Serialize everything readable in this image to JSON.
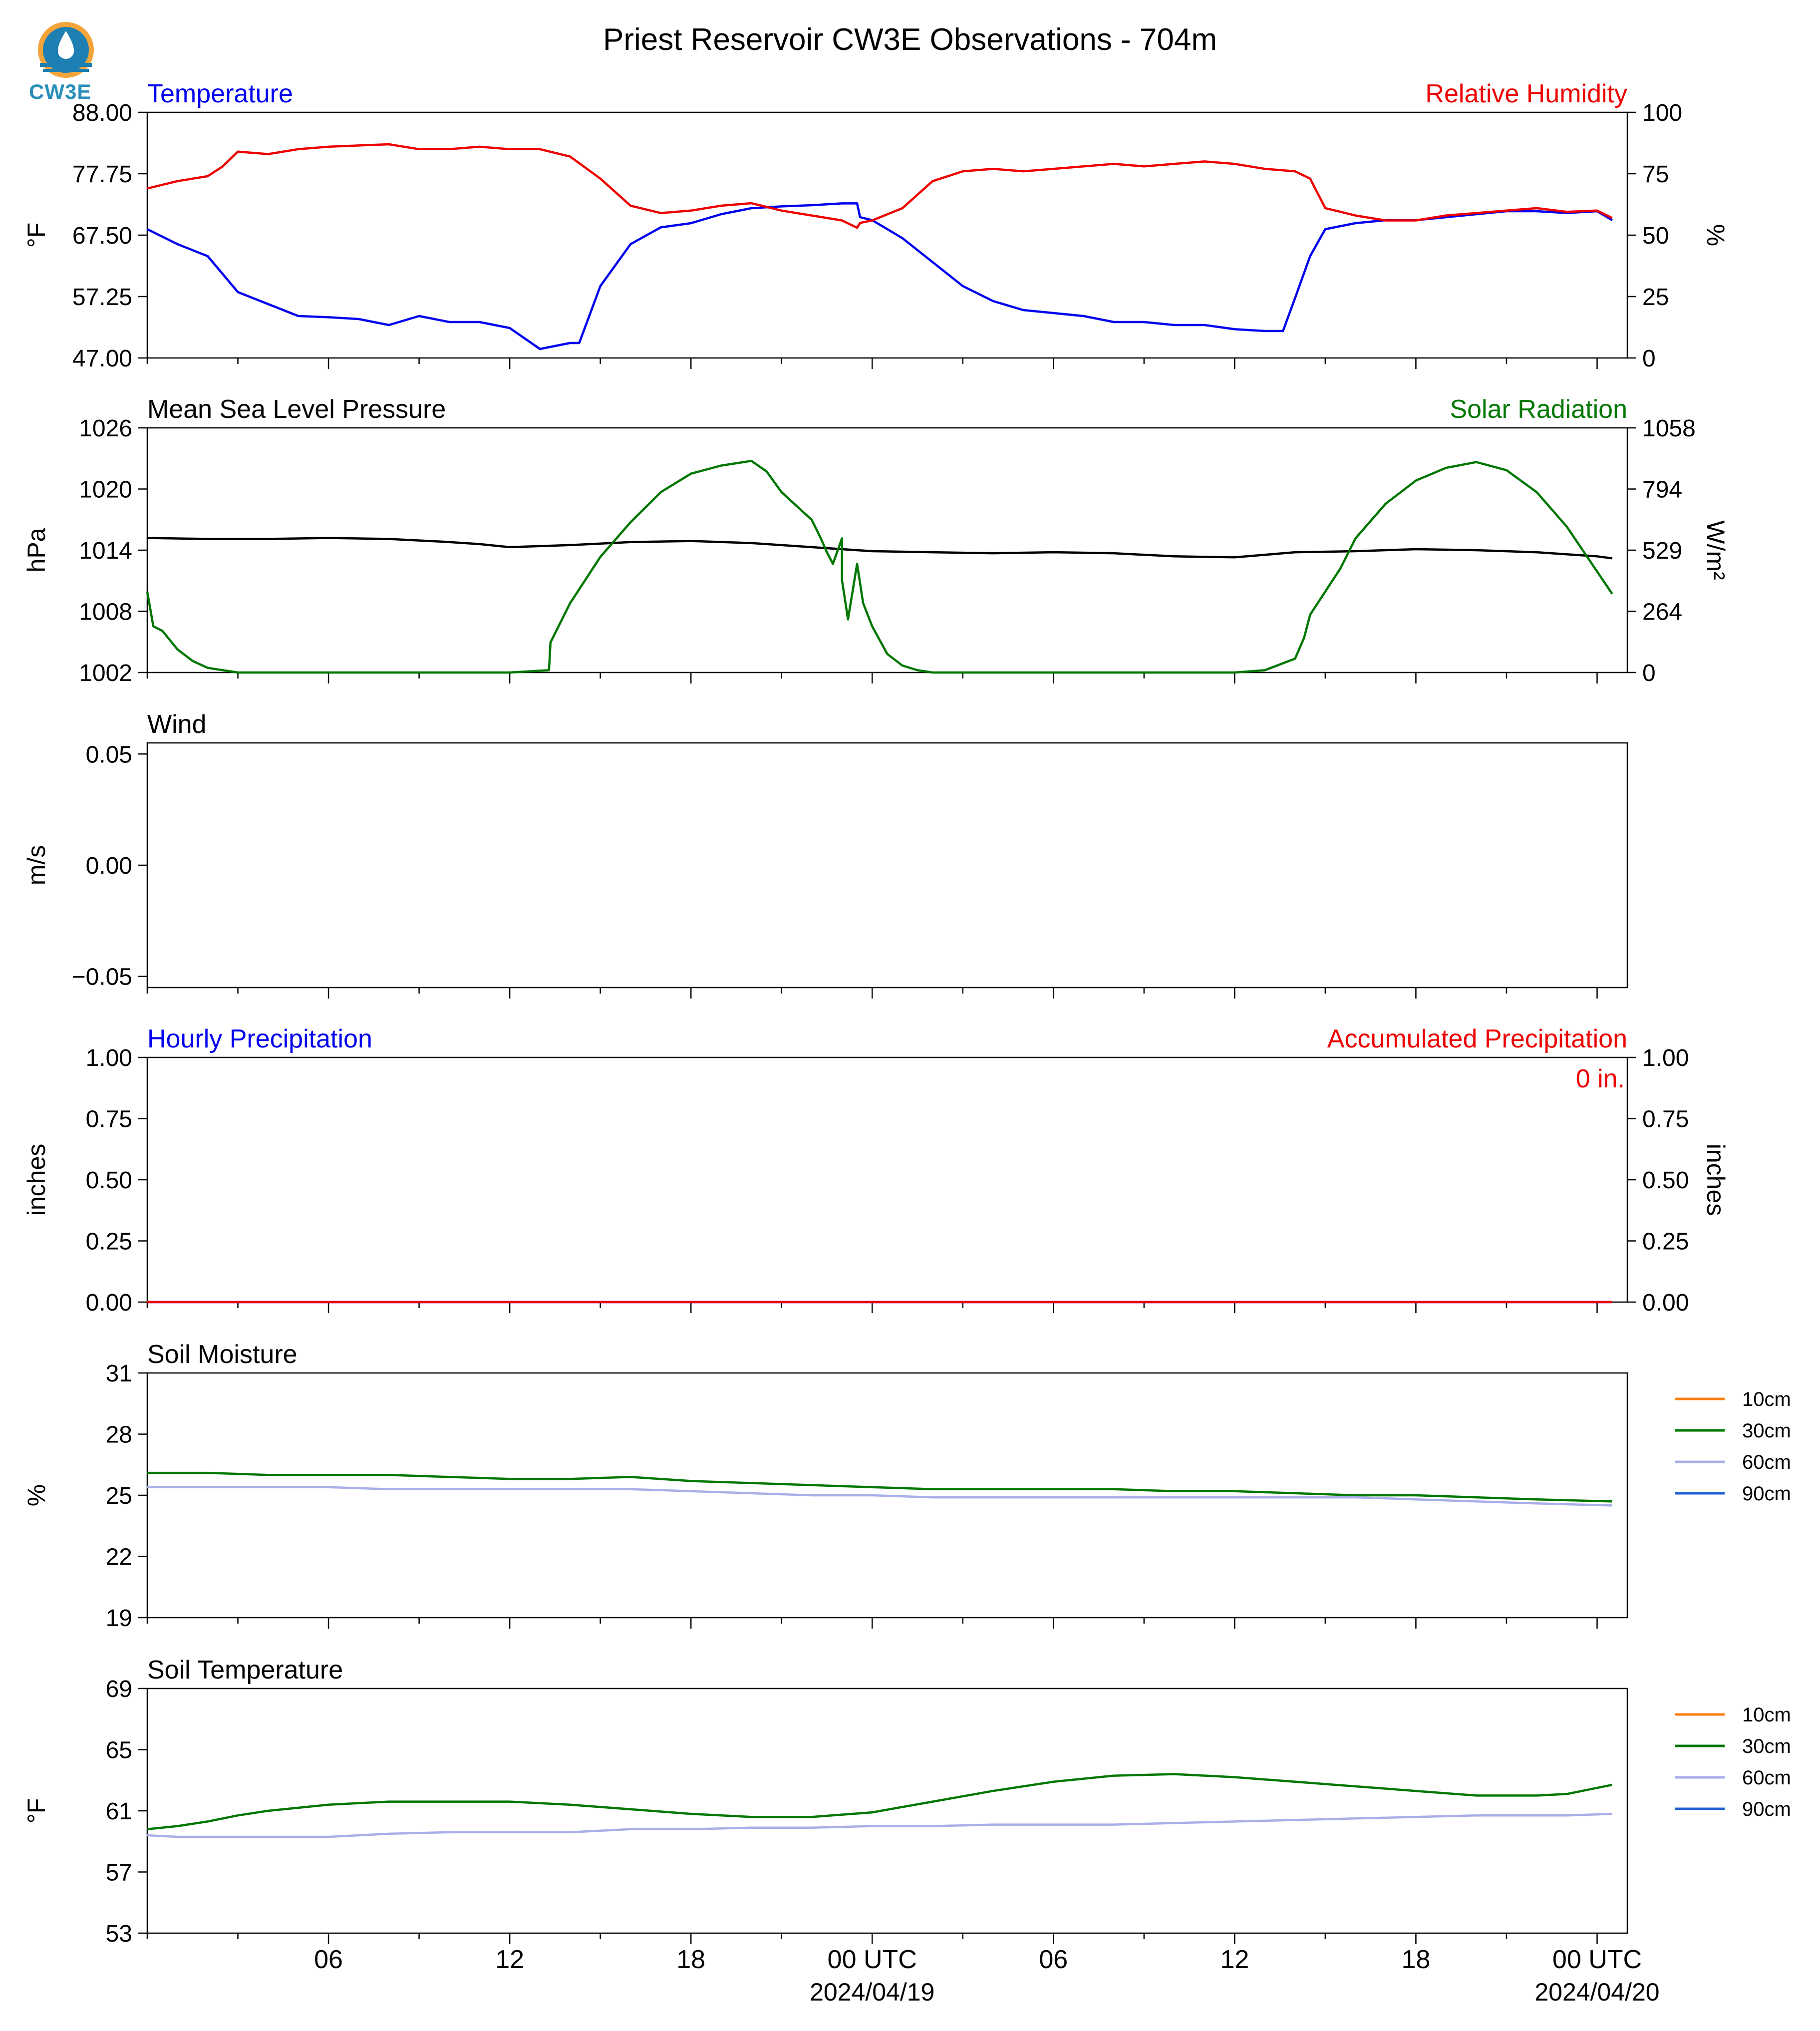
{
  "title": "Priest Reservoir CW3E Observations - 704m",
  "logo_text": "CW3E",
  "colors": {
    "blue": "#0000ee",
    "red": "#ee0000",
    "green": "#007700",
    "black": "#000000",
    "orange": "#ff7f0e",
    "lavender": "#a9aee8",
    "blue90": "#1f5fd6"
  },
  "x_axis": {
    "ticks": [
      {
        "h": 6,
        "label": "06"
      },
      {
        "h": 12,
        "label": "12"
      },
      {
        "h": 18,
        "label": "18"
      },
      {
        "h": 24,
        "label": "00 UTC",
        "date": "2024/04/19"
      },
      {
        "h": 30,
        "label": "06"
      },
      {
        "h": 36,
        "label": "12"
      },
      {
        "h": 42,
        "label": "18"
      },
      {
        "h": 48,
        "label": "00 UTC",
        "date": "2024/04/20"
      }
    ]
  },
  "chart_data": [
    {
      "id": "temp-rh",
      "type": "line",
      "title_left": "Temperature",
      "title_right": "Relative Humidity",
      "ylabel": "°F",
      "ylabel_right": "%",
      "ylim": [
        47.0,
        88.0
      ],
      "yticks": [
        "47.00",
        "57.25",
        "67.50",
        "77.75",
        "88.00"
      ],
      "ylim_right": [
        0,
        100
      ],
      "yticks_right": [
        "0",
        "25",
        "50",
        "75",
        "100"
      ],
      "series": [
        {
          "name": "Temperature",
          "axis": "left",
          "color": "blue",
          "x": [
            0,
            1,
            2,
            2.5,
            3,
            4,
            5,
            6,
            7,
            8,
            9,
            10,
            11,
            12,
            13,
            14,
            14.3,
            15,
            16,
            17,
            18,
            19,
            20,
            21,
            22,
            23,
            23.5,
            23.6,
            24,
            25,
            26,
            27,
            28,
            29,
            30,
            31,
            32,
            33,
            34,
            35,
            36,
            37,
            37.6,
            38,
            38.5,
            39,
            40,
            41,
            42,
            43,
            44,
            45,
            46,
            47,
            48,
            48.5
          ],
          "y": [
            68.5,
            66,
            64,
            61,
            58,
            56,
            54,
            53.8,
            53.5,
            52.5,
            54,
            53,
            53,
            52,
            48.5,
            49.5,
            49.5,
            59,
            66,
            68.8,
            69.5,
            71,
            72,
            72.3,
            72.5,
            72.8,
            72.8,
            70.5,
            70,
            67,
            63,
            59,
            56.5,
            55,
            54.5,
            54,
            53,
            53,
            52.5,
            52.5,
            51.8,
            51.5,
            51.5,
            57,
            64,
            68.5,
            69.5,
            70,
            70,
            70.5,
            71,
            71.5,
            71.5,
            71.2,
            71.5,
            70
          ]
        },
        {
          "name": "Relative Humidity",
          "axis": "right",
          "color": "red",
          "x": [
            0,
            1,
            2,
            2.5,
            3,
            4,
            5,
            6,
            7,
            8,
            9,
            10,
            11,
            12,
            13,
            14,
            15,
            16,
            17,
            18,
            19,
            20,
            21,
            22,
            23,
            23.5,
            23.6,
            24,
            25,
            26,
            27,
            28,
            29,
            30,
            31,
            32,
            33,
            34,
            35,
            36,
            37,
            38,
            38.5,
            39,
            40,
            41,
            42,
            43,
            44,
            45,
            46,
            47,
            48,
            48.5
          ],
          "y": [
            69,
            72,
            74,
            78,
            84,
            83,
            85,
            86,
            86.5,
            87,
            85,
            85,
            86,
            85,
            85,
            82,
            73,
            62,
            59,
            60,
            62,
            63,
            60,
            58,
            56,
            53,
            55,
            56,
            61,
            72,
            76,
            77,
            76,
            77,
            78,
            79,
            78,
            79,
            80,
            79,
            77,
            76,
            73,
            61,
            58,
            56,
            56,
            58,
            59,
            60,
            61,
            59.5,
            60,
            57
          ]
        }
      ]
    },
    {
      "id": "pressure-solar",
      "type": "line",
      "title_left": "Mean Sea Level Pressure",
      "title_right": "Solar Radiation",
      "ylabel": "hPa",
      "ylabel_right": "W/m²",
      "ylim": [
        1002,
        1026
      ],
      "yticks": [
        "1002",
        "1008",
        "1014",
        "1020",
        "1026"
      ],
      "ylim_right": [
        0,
        1058
      ],
      "yticks_right": [
        "0",
        "264",
        "529",
        "794",
        "1058"
      ],
      "series": [
        {
          "name": "Mean Sea Level Pressure",
          "axis": "left",
          "color": "black",
          "x": [
            0,
            2,
            4,
            6,
            8,
            10,
            11,
            12,
            14,
            16,
            18,
            20,
            22,
            24,
            26,
            28,
            30,
            32,
            34,
            36,
            38,
            40,
            42,
            44,
            46,
            48,
            48.5
          ],
          "y": [
            1015.2,
            1015.1,
            1015.1,
            1015.2,
            1015.1,
            1014.8,
            1014.6,
            1014.3,
            1014.5,
            1014.8,
            1014.9,
            1014.7,
            1014.3,
            1013.9,
            1013.8,
            1013.7,
            1013.8,
            1013.7,
            1013.4,
            1013.3,
            1013.8,
            1013.9,
            1014.1,
            1014.0,
            1013.8,
            1013.4,
            1013.2
          ]
        },
        {
          "name": "Solar Radiation",
          "axis": "right",
          "color": "green",
          "x": [
            0,
            0.2,
            0.5,
            1,
            1.5,
            2,
            3,
            4,
            6,
            8,
            10,
            12,
            13.3,
            13.35,
            14,
            15,
            16,
            17,
            18,
            19,
            19.5,
            20,
            20.5,
            21,
            22,
            22.3,
            22.5,
            22.7,
            23,
            23,
            23.2,
            23.5,
            23.7,
            24,
            24.5,
            25,
            25.5,
            26,
            27,
            28,
            30,
            32,
            34,
            36,
            37,
            38,
            38.3,
            38.5,
            39,
            39.5,
            40,
            41,
            42,
            43,
            44,
            45,
            46,
            47,
            48.5
          ],
          "y": [
            350,
            200,
            180,
            100,
            50,
            20,
            0,
            0,
            0,
            0,
            0,
            0,
            10,
            130,
            300,
            500,
            650,
            780,
            860,
            895,
            905,
            915,
            870,
            780,
            660,
            580,
            520,
            470,
            580,
            400,
            230,
            470,
            300,
            200,
            80,
            30,
            10,
            0,
            0,
            0,
            0,
            0,
            0,
            0,
            10,
            60,
            150,
            250,
            350,
            450,
            580,
            730,
            830,
            885,
            910,
            875,
            780,
            630,
            340
          ]
        }
      ]
    },
    {
      "id": "wind",
      "type": "line",
      "title_left": "Wind",
      "title_right": "",
      "ylabel": "m/s",
      "ylim": [
        -0.055,
        0.055
      ],
      "yticks": [
        "−0.05",
        "0.00",
        "0.05"
      ],
      "series": []
    },
    {
      "id": "precip",
      "type": "line",
      "title_left": "Hourly Precipitation",
      "title_right": "Accumulated Precipitation",
      "ylabel": "inches",
      "ylabel_right": "inches",
      "ylim": [
        0,
        1
      ],
      "yticks": [
        "0.00",
        "0.25",
        "0.50",
        "0.75",
        "1.00"
      ],
      "ylim_right": [
        0,
        1
      ],
      "yticks_right": [
        "0.00",
        "0.25",
        "0.50",
        "0.75",
        "1.00"
      ],
      "annotation": "0 in.",
      "series": [
        {
          "name": "Hourly Precipitation",
          "axis": "left",
          "color": "blue",
          "x": [
            0,
            48.5
          ],
          "y": [
            0,
            0
          ]
        },
        {
          "name": "Accumulated Precipitation",
          "axis": "right",
          "color": "red",
          "x": [
            0,
            48.5
          ],
          "y": [
            0,
            0
          ]
        }
      ]
    },
    {
      "id": "soil-moisture",
      "type": "line",
      "title_left": "Soil Moisture",
      "title_right": "",
      "ylabel": "%",
      "ylim": [
        19,
        31
      ],
      "yticks": [
        "19",
        "22",
        "25",
        "28",
        "31"
      ],
      "legend": [
        "10cm",
        "30cm",
        "60cm",
        "90cm"
      ],
      "series": [
        {
          "name": "30cm",
          "axis": "left",
          "color": "green",
          "x": [
            0,
            2,
            4,
            6,
            8,
            10,
            12,
            14,
            16,
            18,
            20,
            22,
            24,
            26,
            28,
            30,
            32,
            34,
            36,
            38,
            40,
            42,
            44,
            46,
            48.5
          ],
          "y": [
            26.1,
            26.1,
            26,
            26,
            26,
            25.9,
            25.8,
            25.8,
            25.9,
            25.7,
            25.6,
            25.5,
            25.4,
            25.3,
            25.3,
            25.3,
            25.3,
            25.2,
            25.2,
            25.1,
            25,
            25,
            24.9,
            24.8,
            24.7
          ]
        },
        {
          "name": "60cm",
          "axis": "left",
          "color": "lavender",
          "x": [
            0,
            2,
            4,
            6,
            8,
            10,
            12,
            14,
            16,
            18,
            20,
            22,
            24,
            26,
            28,
            30,
            32,
            34,
            36,
            38,
            40,
            42,
            44,
            46,
            48.5
          ],
          "y": [
            25.4,
            25.4,
            25.4,
            25.4,
            25.3,
            25.3,
            25.3,
            25.3,
            25.3,
            25.2,
            25.1,
            25.0,
            25.0,
            24.9,
            24.9,
            24.9,
            24.9,
            24.9,
            24.9,
            24.9,
            24.9,
            24.8,
            24.7,
            24.6,
            24.5
          ]
        }
      ]
    },
    {
      "id": "soil-temp",
      "type": "line",
      "title_left": "Soil Temperature",
      "title_right": "",
      "ylabel": "°F",
      "ylim": [
        53,
        69
      ],
      "yticks": [
        "53",
        "57",
        "61",
        "65",
        "69"
      ],
      "legend": [
        "10cm",
        "30cm",
        "60cm",
        "90cm"
      ],
      "series": [
        {
          "name": "30cm",
          "axis": "left",
          "color": "green",
          "x": [
            0,
            1,
            2,
            3,
            4,
            5,
            6,
            8,
            10,
            12,
            14,
            16,
            18,
            20,
            22,
            24,
            26,
            28,
            30,
            32,
            34,
            36,
            38,
            40,
            42,
            44,
            46,
            47,
            48.5
          ],
          "y": [
            59.8,
            60.0,
            60.3,
            60.7,
            61.0,
            61.2,
            61.4,
            61.6,
            61.6,
            61.6,
            61.4,
            61.1,
            60.8,
            60.6,
            60.6,
            60.9,
            61.6,
            62.3,
            62.9,
            63.3,
            63.4,
            63.2,
            62.9,
            62.6,
            62.3,
            62.0,
            62.0,
            62.1,
            62.7
          ]
        },
        {
          "name": "60cm",
          "axis": "left",
          "color": "lavender",
          "x": [
            0,
            1,
            2,
            3,
            4,
            5,
            6,
            8,
            10,
            12,
            14,
            16,
            18,
            20,
            22,
            24,
            26,
            28,
            30,
            32,
            34,
            36,
            38,
            40,
            42,
            44,
            46,
            47,
            48.5
          ],
          "y": [
            59.4,
            59.3,
            59.3,
            59.3,
            59.3,
            59.3,
            59.3,
            59.5,
            59.6,
            59.6,
            59.6,
            59.8,
            59.8,
            59.9,
            59.9,
            60.0,
            60.0,
            60.1,
            60.1,
            60.1,
            60.2,
            60.3,
            60.4,
            60.5,
            60.6,
            60.7,
            60.7,
            60.7,
            60.8
          ]
        }
      ]
    }
  ]
}
